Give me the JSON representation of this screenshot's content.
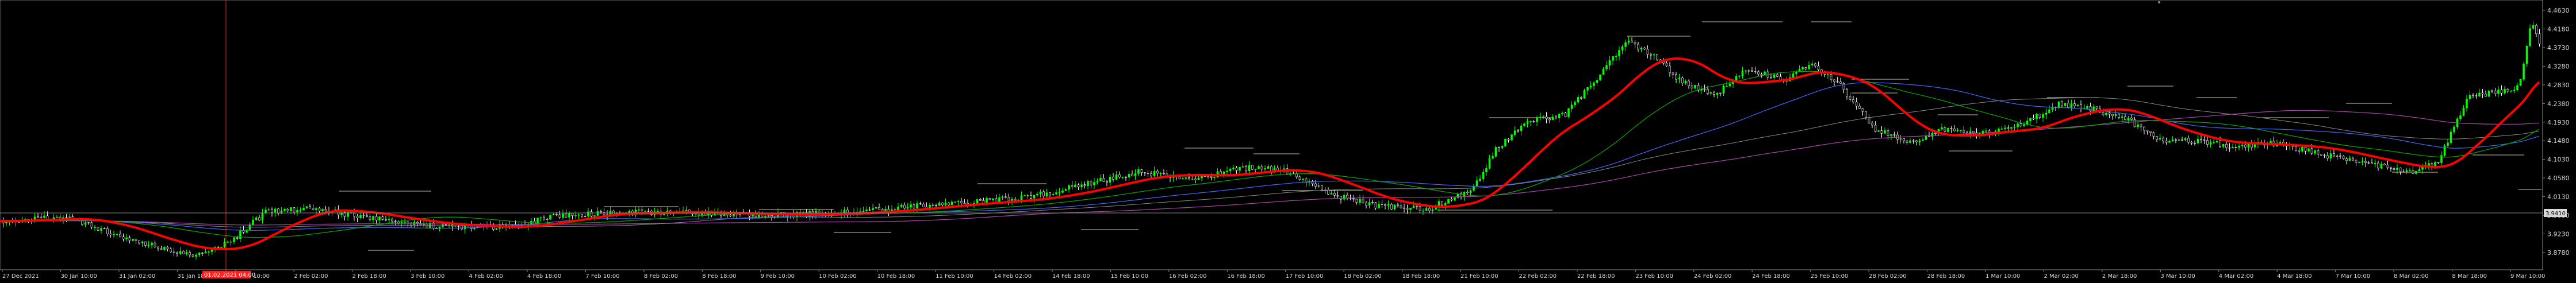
{
  "platform": "MetaTrader",
  "chart": {
    "background": "#000000",
    "bull_candle_color": "#00ff00",
    "bear_candle_color": "#ffffff",
    "price_axis_labels": [
      "4.4630",
      "4.4180",
      "4.3730",
      "4.3280",
      "4.2830",
      "4.2380",
      "4.1930",
      "4.1480",
      "4.1030",
      "4.0580",
      "4.0130",
      "3.9680",
      "3.9230",
      "3.8780"
    ],
    "current_price_label": "3.9410",
    "time_labels": [
      "27 Dec 2021",
      "30 Jan 10:00",
      "31 Jan 02:00",
      "31 Jan 18:00",
      "1 Feb 10:00",
      "2 Feb 02:00",
      "2 Feb 18:00",
      "3 Feb 10:00",
      "4 Feb 02:00",
      "4 Feb 18:00",
      "7 Feb 10:00",
      "8 Feb 02:00",
      "8 Feb 18:00",
      "9 Feb 10:00",
      "10 Feb 02:00",
      "10 Feb 18:00",
      "11 Feb 10:00",
      "14 Feb 02:00",
      "14 Feb 18:00",
      "15 Feb 10:00",
      "16 Feb 02:00",
      "16 Feb 18:00",
      "17 Feb 10:00",
      "18 Feb 02:00",
      "18 Feb 18:00",
      "21 Feb 10:00",
      "22 Feb 02:00",
      "22 Feb 18:00",
      "23 Feb 10:00",
      "24 Feb 02:00",
      "24 Feb 18:00",
      "25 Feb 10:00",
      "28 Feb 02:00",
      "28 Feb 18:00",
      "1 Mar 10:00",
      "2 Mar 02:00",
      "2 Mar 18:00",
      "3 Mar 10:00",
      "4 Mar 02:00",
      "4 Mar 18:00",
      "7 Mar 10:00",
      "8 Mar 02:00",
      "8 Mar 18:00",
      "9 Mar 10:00"
    ],
    "highlighted_time_label": "01.02.2021 04:00",
    "ma_colors": {
      "fast": "#ff0000",
      "medium": "#00aa00",
      "slow": "#4466ff",
      "long": "#aa44aa",
      "extra": "#888888"
    },
    "level_line_color": "#c8c8a0",
    "crosshair_color": "#ff0000",
    "grid_color": "#555555"
  }
}
